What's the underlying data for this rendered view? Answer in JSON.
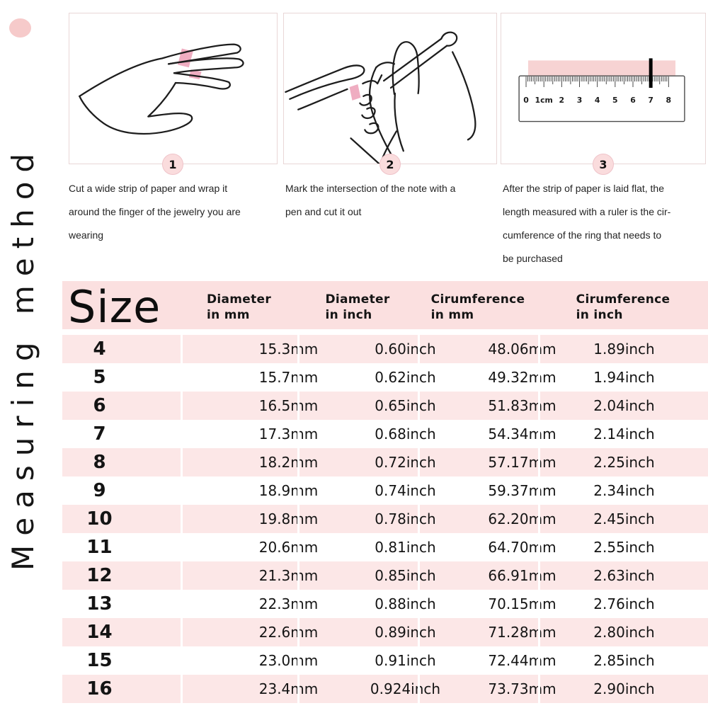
{
  "title_rail": {
    "text": "Measuring method"
  },
  "steps": [
    {
      "number": "1",
      "illustration": "hand-with-paper-strip",
      "caption": "Cut a wide strip of paper and wrap it\naround the finger of the jewelry you are\nwearing"
    },
    {
      "number": "2",
      "illustration": "hand-marking-with-pen",
      "caption": "Mark the intersection of the note with a\npen and cut it out"
    },
    {
      "number": "3",
      "illustration": "paper-strip-on-ruler",
      "caption": "After the strip of paper is laid flat, the\nlength measured with a ruler is the cir-\ncumference of the ring that needs to\nbe purchased"
    }
  ],
  "ruler": {
    "tick_labels": [
      "0",
      "1cm",
      "2",
      "3",
      "4",
      "5",
      "6",
      "7",
      "8"
    ],
    "marker_value": "7"
  },
  "size_table": {
    "columns": [
      "Size",
      "Diameter\nin mm",
      "Diameter\nin inch",
      "Cirumference\nin mm",
      "Cirumference\nin inch"
    ],
    "rows": [
      {
        "size": "4",
        "diameter_mm": "15.3mm",
        "diameter_inch": "0.60inch",
        "circumference_mm": "48.06mm",
        "circumference_inch": "1.89inch"
      },
      {
        "size": "5",
        "diameter_mm": "15.7mm",
        "diameter_inch": "0.62inch",
        "circumference_mm": "49.32mm",
        "circumference_inch": "1.94inch"
      },
      {
        "size": "6",
        "diameter_mm": "16.5mm",
        "diameter_inch": "0.65inch",
        "circumference_mm": "51.83mm",
        "circumference_inch": "2.04inch"
      },
      {
        "size": "7",
        "diameter_mm": "17.3mm",
        "diameter_inch": "0.68inch",
        "circumference_mm": "54.34mm",
        "circumference_inch": "2.14inch"
      },
      {
        "size": "8",
        "diameter_mm": "18.2mm",
        "diameter_inch": "0.72inch",
        "circumference_mm": "57.17mm",
        "circumference_inch": "2.25inch"
      },
      {
        "size": "9",
        "diameter_mm": "18.9mm",
        "diameter_inch": "0.74inch",
        "circumference_mm": "59.37mm",
        "circumference_inch": "2.34inch"
      },
      {
        "size": "10",
        "diameter_mm": "19.8mm",
        "diameter_inch": "0.78inch",
        "circumference_mm": "62.20mm",
        "circumference_inch": "2.45inch"
      },
      {
        "size": "11",
        "diameter_mm": "20.6mm",
        "diameter_inch": "0.81inch",
        "circumference_mm": "64.70mm",
        "circumference_inch": "2.55inch"
      },
      {
        "size": "12",
        "diameter_mm": "21.3mm",
        "diameter_inch": "0.85inch",
        "circumference_mm": "66.91mm",
        "circumference_inch": "2.63inch"
      },
      {
        "size": "13",
        "diameter_mm": "22.3mm",
        "diameter_inch": "0.88inch",
        "circumference_mm": "70.15mm",
        "circumference_inch": "2.76inch"
      },
      {
        "size": "14",
        "diameter_mm": "22.6mm",
        "diameter_inch": "0.89inch",
        "circumference_mm": "71.28mm",
        "circumference_inch": "2.80inch"
      },
      {
        "size": "15",
        "diameter_mm": "23.0mm",
        "diameter_inch": "0.91inch",
        "circumference_mm": "72.44mm",
        "circumference_inch": "2.85inch"
      },
      {
        "size": "16",
        "diameter_mm": "23.4mm",
        "diameter_inch": "0.924inch",
        "circumference_mm": "73.73mm",
        "circumference_inch": "2.90inch"
      }
    ]
  },
  "colors": {
    "row_pink": "#fce7e7",
    "header_pink": "#fbe0e0",
    "dot_pink": "#f6caca",
    "badge_pink": "#fadcdd",
    "badge_border": "#efc3c9",
    "strip_pink": "#ec9fb6",
    "ruler_strip_pink": "#f7d3d3",
    "line_ink": "#1d1d1d",
    "panel_border": "#e9d7d7"
  }
}
